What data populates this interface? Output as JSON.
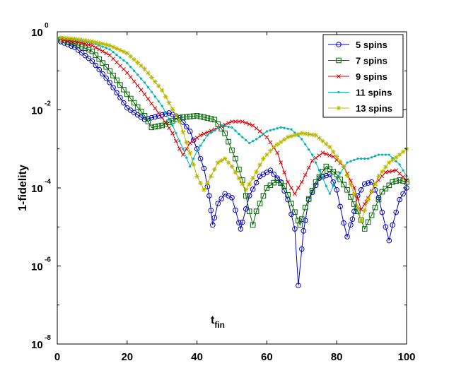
{
  "chart_data": {
    "type": "line",
    "title": "",
    "xlabel": "t",
    "xlabel_subscript": "fin",
    "ylabel": "1-fidelity",
    "xlim": [
      0,
      100
    ],
    "ylim_log10": [
      -8,
      0
    ],
    "y_scale": "log",
    "x_ticks": [
      "0",
      "20",
      "40",
      "60",
      "80",
      "100"
    ],
    "y_ticks": [
      {
        "base": "10",
        "exp": "0"
      },
      {
        "base": "10",
        "exp": "-2"
      },
      {
        "base": "10",
        "exp": "-4"
      },
      {
        "base": "10",
        "exp": "-6"
      },
      {
        "base": "10",
        "exp": "-8"
      }
    ],
    "legend_position": "top-right",
    "series": [
      {
        "name": "5 spins",
        "color": "#0000cc",
        "marker": "circle",
        "points_log10": [
          [
            1,
            -0.25
          ],
          [
            5,
            -0.4
          ],
          [
            10,
            -0.75
          ],
          [
            15,
            -1.3
          ],
          [
            20,
            -1.95
          ],
          [
            25,
            -2.25
          ],
          [
            28,
            -2.18
          ],
          [
            32,
            -2.08
          ],
          [
            35,
            -2.2
          ],
          [
            38,
            -2.55
          ],
          [
            40,
            -3.0
          ],
          [
            42,
            -3.5
          ],
          [
            43.5,
            -4.2
          ],
          [
            44.5,
            -4.95
          ],
          [
            46,
            -4.4
          ],
          [
            48,
            -4.15
          ],
          [
            50,
            -4.25
          ],
          [
            52.5,
            -5.05
          ],
          [
            55,
            -4.2
          ],
          [
            58,
            -3.7
          ],
          [
            61,
            -3.55
          ],
          [
            64,
            -3.85
          ],
          [
            66,
            -4.3
          ],
          [
            68,
            -5.05
          ],
          [
            69,
            -6.5
          ],
          [
            70.5,
            -5.1
          ],
          [
            72,
            -4.3
          ],
          [
            75,
            -3.75
          ],
          [
            78,
            -3.65
          ],
          [
            80,
            -4.05
          ],
          [
            82,
            -4.9
          ],
          [
            83,
            -5.25
          ],
          [
            84.5,
            -4.8
          ],
          [
            86,
            -4.2
          ],
          [
            88,
            -3.9
          ],
          [
            90,
            -3.85
          ],
          [
            92,
            -4.25
          ],
          [
            94,
            -5.0
          ],
          [
            95,
            -5.35
          ],
          [
            96,
            -4.95
          ],
          [
            98,
            -4.3
          ],
          [
            100,
            -4.0
          ]
        ]
      },
      {
        "name": "7 spins",
        "color": "#006600",
        "marker": "square",
        "points_log10": [
          [
            1,
            -0.2
          ],
          [
            5,
            -0.3
          ],
          [
            10,
            -0.5
          ],
          [
            15,
            -1.0
          ],
          [
            20,
            -1.6
          ],
          [
            25,
            -2.15
          ],
          [
            27,
            -2.45
          ],
          [
            30,
            -2.4
          ],
          [
            35,
            -2.2
          ],
          [
            40,
            -2.15
          ],
          [
            45,
            -2.25
          ],
          [
            48,
            -2.6
          ],
          [
            51,
            -3.25
          ],
          [
            53,
            -3.8
          ],
          [
            55,
            -4.6
          ],
          [
            56,
            -4.95
          ],
          [
            57,
            -4.6
          ],
          [
            60,
            -4.0
          ],
          [
            63,
            -3.8
          ],
          [
            65,
            -3.95
          ],
          [
            67,
            -4.4
          ],
          [
            69.5,
            -4.95
          ],
          [
            71,
            -4.5
          ],
          [
            74,
            -3.85
          ],
          [
            77,
            -3.45
          ],
          [
            80,
            -3.65
          ],
          [
            83,
            -4.05
          ],
          [
            86,
            -4.6
          ],
          [
            88,
            -5.05
          ],
          [
            90,
            -4.7
          ],
          [
            93,
            -4.1
          ],
          [
            96,
            -3.85
          ],
          [
            98,
            -3.8
          ],
          [
            100,
            -3.85
          ]
        ]
      },
      {
        "name": "9 spins",
        "color": "#dd0000",
        "marker": "cross",
        "points_log10": [
          [
            1,
            -0.2
          ],
          [
            5,
            -0.25
          ],
          [
            10,
            -0.35
          ],
          [
            15,
            -0.6
          ],
          [
            20,
            -1.05
          ],
          [
            25,
            -1.6
          ],
          [
            30,
            -2.2
          ],
          [
            33,
            -2.6
          ],
          [
            35,
            -3.0
          ],
          [
            36,
            -3.15
          ],
          [
            38,
            -2.85
          ],
          [
            41,
            -2.65
          ],
          [
            45,
            -2.5
          ],
          [
            50,
            -2.3
          ],
          [
            53,
            -2.3
          ],
          [
            56,
            -2.4
          ],
          [
            60,
            -2.7
          ],
          [
            63,
            -3.1
          ],
          [
            66,
            -3.85
          ],
          [
            68,
            -4.15
          ],
          [
            70,
            -3.85
          ],
          [
            73,
            -3.3
          ],
          [
            76,
            -3.1
          ],
          [
            79,
            -3.2
          ],
          [
            82,
            -3.45
          ],
          [
            85,
            -4.0
          ],
          [
            87,
            -4.55
          ],
          [
            88.5,
            -4.35
          ],
          [
            91,
            -3.9
          ],
          [
            94,
            -3.6
          ],
          [
            97,
            -3.55
          ],
          [
            100,
            -3.8
          ]
        ]
      },
      {
        "name": "11 spins",
        "color": "#00b3b3",
        "marker": "dot",
        "points_log10": [
          [
            1,
            -0.15
          ],
          [
            5,
            -0.2
          ],
          [
            10,
            -0.28
          ],
          [
            15,
            -0.45
          ],
          [
            20,
            -0.8
          ],
          [
            25,
            -1.3
          ],
          [
            30,
            -1.9
          ],
          [
            33,
            -2.4
          ],
          [
            36,
            -3.0
          ],
          [
            38,
            -3.45
          ],
          [
            40,
            -3.05
          ],
          [
            43,
            -2.65
          ],
          [
            47,
            -2.4
          ],
          [
            50,
            -2.45
          ],
          [
            53,
            -2.7
          ],
          [
            55,
            -2.85
          ],
          [
            57,
            -2.75
          ],
          [
            60,
            -2.55
          ],
          [
            64,
            -2.45
          ],
          [
            67,
            -2.5
          ],
          [
            70,
            -2.75
          ],
          [
            73,
            -3.15
          ],
          [
            76,
            -3.75
          ],
          [
            78,
            -4.15
          ],
          [
            80,
            -3.75
          ],
          [
            83,
            -3.35
          ],
          [
            86,
            -3.25
          ],
          [
            89,
            -3.25
          ],
          [
            92,
            -3.15
          ],
          [
            95,
            -3.15
          ],
          [
            98,
            -3.4
          ],
          [
            100,
            -3.7
          ]
        ]
      },
      {
        "name": "13 spins",
        "color": "#b8b800",
        "marker": "star",
        "points_log10": [
          [
            1,
            -0.15
          ],
          [
            5,
            -0.18
          ],
          [
            10,
            -0.25
          ],
          [
            15,
            -0.35
          ],
          [
            20,
            -0.55
          ],
          [
            25,
            -0.95
          ],
          [
            30,
            -1.5
          ],
          [
            35,
            -2.3
          ],
          [
            38,
            -3.1
          ],
          [
            40,
            -3.7
          ],
          [
            42,
            -4.05
          ],
          [
            44,
            -3.7
          ],
          [
            46,
            -3.35
          ],
          [
            48,
            -3.25
          ],
          [
            50,
            -3.45
          ],
          [
            52,
            -3.75
          ],
          [
            54,
            -4.05
          ],
          [
            56,
            -3.75
          ],
          [
            59,
            -3.25
          ],
          [
            62,
            -2.95
          ],
          [
            66,
            -2.7
          ],
          [
            70,
            -2.6
          ],
          [
            74,
            -2.65
          ],
          [
            78,
            -2.95
          ],
          [
            82,
            -3.45
          ],
          [
            85,
            -4.15
          ],
          [
            87,
            -4.85
          ],
          [
            89,
            -4.3
          ],
          [
            92,
            -3.7
          ],
          [
            95,
            -3.35
          ],
          [
            98,
            -3.15
          ],
          [
            100,
            -3.0
          ]
        ]
      }
    ]
  }
}
